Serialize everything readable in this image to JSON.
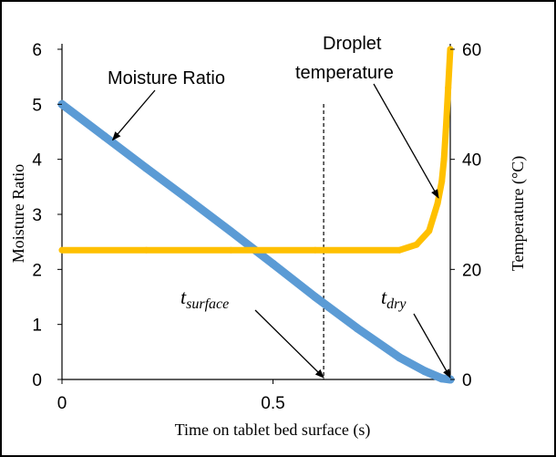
{
  "chart_data": {
    "type": "line",
    "xlabel": "Time on tablet bed surface (s)",
    "ylabel_left": "Moisture Ratio",
    "ylabel_right": "Temperature (°C)",
    "xlim": [
      0,
      0.92
    ],
    "ylim_left": [
      0,
      6
    ],
    "ylim_right": [
      0,
      60
    ],
    "x_ticks": [
      0,
      0.5
    ],
    "x_tick_labels": [
      "0",
      "0.5"
    ],
    "y_left_ticks": [
      0,
      1,
      2,
      3,
      4,
      5,
      6
    ],
    "y_left_tick_labels": [
      "0",
      "1",
      "2",
      "3",
      "4",
      "5",
      "6"
    ],
    "y_right_ticks": [
      0,
      20,
      40,
      60
    ],
    "y_right_tick_labels": [
      "0",
      "20",
      "40",
      "60"
    ],
    "grid": false,
    "series": [
      {
        "name": "Moisture Ratio",
        "axis": "left",
        "color": "#5b9bd5",
        "x": [
          0,
          0.1,
          0.2,
          0.3,
          0.4,
          0.5,
          0.6,
          0.7,
          0.8,
          0.86,
          0.9,
          0.92
        ],
        "y": [
          5.0,
          4.42,
          3.84,
          3.27,
          2.69,
          2.1,
          1.5,
          0.93,
          0.4,
          0.15,
          0.02,
          0.0
        ]
      },
      {
        "name": "Droplet temperature",
        "axis": "right",
        "color": "#ffc000",
        "x": [
          0,
          0.2,
          0.4,
          0.6,
          0.8,
          0.84,
          0.87,
          0.89,
          0.9,
          0.905,
          0.91,
          0.915,
          0.92
        ],
        "y": [
          23.5,
          23.5,
          23.5,
          23.5,
          23.5,
          24.5,
          27.0,
          32.0,
          36.0,
          40.0,
          46.0,
          53.0,
          60.0
        ]
      }
    ],
    "vline": {
      "x": 0.62,
      "style": "dashed"
    },
    "annotations": {
      "moisture": {
        "text": "Moisture Ratio",
        "arrow_to": [
          0.12,
          4.35
        ]
      },
      "droplet": {
        "line1": "Droplet",
        "line2": "temperature",
        "arrow_to": [
          0.905,
          3.3
        ]
      },
      "t_surface": {
        "base": "t",
        "sub": "surface",
        "arrow_to": [
          0.62,
          0.0
        ]
      },
      "t_dry": {
        "base": "t",
        "sub": "dry",
        "arrow_to": [
          0.92,
          0.0
        ]
      }
    }
  }
}
